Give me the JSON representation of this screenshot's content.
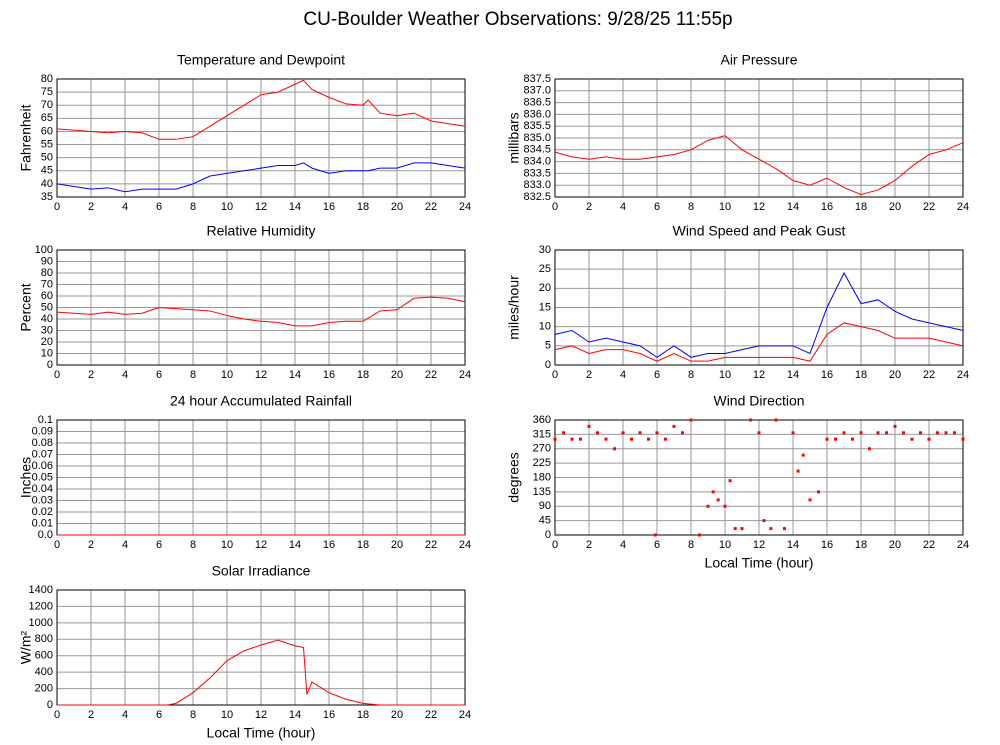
{
  "title": "CU-Boulder Weather Observations: 9/28/25 11:55p",
  "chart_data": [
    {
      "type": "line",
      "title": "Temperature and Dewpoint",
      "ylabel": "Fahrenheit",
      "x": [
        0,
        1,
        2,
        3,
        4,
        5,
        6,
        7,
        8,
        9,
        10,
        11,
        12,
        13,
        14,
        14.5,
        15,
        16,
        17,
        18,
        18.3,
        19,
        20,
        21,
        22,
        23,
        24
      ],
      "series": [
        {
          "name": "Temperature",
          "color": "#ff0000",
          "values": [
            61,
            60.5,
            60,
            59.5,
            60,
            59.5,
            57,
            57,
            58,
            62,
            66,
            70,
            74,
            75,
            78,
            79.5,
            76,
            73,
            70.5,
            70,
            72,
            67,
            66,
            67,
            64,
            63,
            62
          ]
        },
        {
          "name": "Dewpoint",
          "color": "#0000ff",
          "values": [
            40,
            39,
            38,
            38.5,
            37,
            38,
            38,
            38,
            40,
            43,
            44,
            45,
            46,
            47,
            47,
            48,
            46,
            44,
            45,
            45,
            45,
            46,
            46,
            48,
            48,
            47,
            46
          ]
        }
      ],
      "xlim": [
        0,
        24
      ],
      "xticks": [
        0,
        2,
        4,
        6,
        8,
        10,
        12,
        14,
        16,
        18,
        20,
        22,
        24
      ],
      "ylim": [
        35,
        80
      ],
      "yticks": [
        35,
        40,
        45,
        50,
        55,
        60,
        65,
        70,
        75,
        80
      ],
      "grid": true
    },
    {
      "type": "line",
      "title": "Air Pressure",
      "ylabel": "millibars",
      "x": [
        0,
        1,
        2,
        3,
        4,
        5,
        6,
        7,
        8,
        9,
        10,
        11,
        12,
        13,
        14,
        15,
        16,
        17,
        18,
        19,
        20,
        21,
        22,
        23,
        24
      ],
      "series": [
        {
          "name": "Air Pressure",
          "color": "#ff0000",
          "values": [
            834.4,
            834.2,
            834.1,
            834.2,
            834.1,
            834.1,
            834.2,
            834.3,
            834.5,
            834.9,
            835.1,
            834.5,
            834.1,
            833.7,
            833.2,
            833.0,
            833.3,
            832.9,
            832.6,
            832.8,
            833.2,
            833.8,
            834.3,
            834.5,
            834.8
          ]
        }
      ],
      "xlim": [
        0,
        24
      ],
      "xticks": [
        0,
        2,
        4,
        6,
        8,
        10,
        12,
        14,
        16,
        18,
        20,
        22,
        24
      ],
      "ylim": [
        832.5,
        837.5
      ],
      "yticks": [
        832.5,
        {
          "value": 833,
          "label": "833.0"
        },
        833.5,
        {
          "value": 834,
          "label": "834.0"
        },
        834.5,
        {
          "value": 835,
          "label": "835.0"
        },
        835.5,
        {
          "value": 836,
          "label": "836.0"
        },
        836.5,
        {
          "value": 837,
          "label": "837.0"
        },
        837.5
      ],
      "grid": true
    },
    {
      "type": "line",
      "title": "Relative Humidity",
      "ylabel": "Percent",
      "x": [
        0,
        1,
        2,
        3,
        4,
        5,
        6,
        7,
        8,
        9,
        10,
        11,
        12,
        13,
        14,
        15,
        16,
        17,
        18,
        19,
        20,
        21,
        22,
        23,
        24
      ],
      "series": [
        {
          "name": "Relative Humidity",
          "color": "#ff0000",
          "values": [
            46,
            45,
            44,
            46,
            44,
            45,
            50,
            49,
            48,
            47,
            43,
            40,
            38,
            37,
            34,
            34,
            37,
            38,
            38,
            47,
            48,
            58,
            59,
            58,
            55
          ]
        }
      ],
      "xlim": [
        0,
        24
      ],
      "xticks": [
        0,
        2,
        4,
        6,
        8,
        10,
        12,
        14,
        16,
        18,
        20,
        22,
        24
      ],
      "ylim": [
        0,
        100
      ],
      "yticks": [
        0,
        10,
        20,
        30,
        40,
        50,
        60,
        70,
        80,
        90,
        100
      ],
      "grid": true
    },
    {
      "type": "line",
      "title": "Wind Speed and Peak Gust",
      "ylabel": "miles/hour",
      "x": [
        0,
        1,
        2,
        3,
        4,
        5,
        6,
        7,
        8,
        9,
        10,
        11,
        12,
        13,
        14,
        15,
        16,
        17,
        18,
        19,
        20,
        21,
        22,
        23,
        24
      ],
      "series": [
        {
          "name": "Peak Gust",
          "color": "#0000ff",
          "values": [
            8,
            9,
            6,
            7,
            6,
            5,
            2,
            5,
            2,
            3,
            3,
            4,
            5,
            5,
            5,
            3,
            15,
            24,
            16,
            17,
            14,
            12,
            11,
            10,
            9
          ]
        },
        {
          "name": "Wind Speed",
          "color": "#ff0000",
          "values": [
            4,
            5,
            3,
            4,
            4,
            3,
            1,
            3,
            1,
            1,
            2,
            2,
            2,
            2,
            2,
            1,
            8,
            11,
            10,
            9,
            7,
            7,
            7,
            6,
            5
          ]
        }
      ],
      "xlim": [
        0,
        24
      ],
      "xticks": [
        0,
        2,
        4,
        6,
        8,
        10,
        12,
        14,
        16,
        18,
        20,
        22,
        24
      ],
      "ylim": [
        0,
        30
      ],
      "yticks": [
        0,
        5,
        10,
        15,
        20,
        25,
        30
      ],
      "grid": true
    },
    {
      "type": "line",
      "title": "24 hour Accumulated Rainfall",
      "ylabel": "Inches",
      "x": [
        0,
        2,
        4,
        6,
        8,
        10,
        12,
        14,
        16,
        18,
        20,
        22,
        24
      ],
      "series": [
        {
          "name": "Rainfall",
          "color": "#ff0000",
          "values": [
            0,
            0,
            0,
            0,
            0,
            0,
            0,
            0,
            0,
            0,
            0,
            0,
            0
          ]
        }
      ],
      "xlim": [
        0,
        24
      ],
      "xticks": [
        0,
        2,
        4,
        6,
        8,
        10,
        12,
        14,
        16,
        18,
        20,
        22,
        24
      ],
      "ylim": [
        0,
        0.1
      ],
      "yticks": [
        {
          "value": 0,
          "label": "0.0"
        },
        0.01,
        0.02,
        0.03,
        0.04,
        0.05,
        0.06,
        0.07,
        0.08,
        0.09,
        0.1
      ],
      "grid": true
    },
    {
      "type": "scatter",
      "title": "Wind Direction",
      "ylabel": "degrees",
      "xlabel": "Local Time (hour)",
      "x": [
        0,
        0.5,
        1,
        1.5,
        2,
        2.5,
        3,
        3.5,
        4,
        4.5,
        5,
        5.5,
        5.9,
        6,
        6.5,
        7,
        7.5,
        8,
        8.5,
        9,
        9.3,
        9.6,
        10,
        10.3,
        10.6,
        11,
        11.5,
        12,
        12.3,
        12.7,
        13,
        13.5,
        14,
        14.3,
        14.6,
        15,
        15.5,
        16,
        16.5,
        17,
        17.5,
        18,
        18.5,
        19,
        19.5,
        20,
        20.5,
        21,
        21.5,
        22,
        22.5,
        23,
        23.5,
        24
      ],
      "series": [
        {
          "name": "Wind Direction",
          "color": "#ff0000",
          "values": [
            300,
            320,
            300,
            300,
            340,
            320,
            300,
            270,
            320,
            300,
            320,
            300,
            0,
            320,
            300,
            340,
            320,
            360,
            0,
            90,
            135,
            110,
            90,
            170,
            20,
            20,
            360,
            320,
            45,
            20,
            360,
            20,
            320,
            200,
            250,
            110,
            135,
            300,
            300,
            320,
            300,
            320,
            270,
            320,
            320,
            340,
            320,
            300,
            320,
            300,
            320,
            320,
            320,
            300
          ]
        }
      ],
      "xlim": [
        0,
        24
      ],
      "xticks": [
        0,
        2,
        4,
        6,
        8,
        10,
        12,
        14,
        16,
        18,
        20,
        22,
        24
      ],
      "ylim": [
        0,
        360
      ],
      "yticks": [
        0,
        45,
        90,
        135,
        180,
        225,
        270,
        315,
        360
      ],
      "grid": true
    },
    {
      "type": "line",
      "title": "Solar Irradiance",
      "ylabel": "W/m²",
      "xlabel": "Local Time (hour)",
      "x": [
        0,
        2,
        4,
        6,
        6.5,
        7,
        8,
        9,
        10,
        11,
        12,
        13,
        14,
        14.5,
        14.7,
        15,
        16,
        17,
        18,
        19,
        20,
        22,
        24
      ],
      "series": [
        {
          "name": "Solar Irradiance",
          "color": "#ff0000",
          "values": [
            0,
            0,
            0,
            0,
            0,
            20,
            150,
            330,
            540,
            660,
            730,
            790,
            720,
            700,
            130,
            280,
            150,
            70,
            20,
            0,
            0,
            0,
            0
          ]
        }
      ],
      "xlim": [
        0,
        24
      ],
      "xticks": [
        0,
        2,
        4,
        6,
        8,
        10,
        12,
        14,
        16,
        18,
        20,
        22,
        24
      ],
      "ylim": [
        0,
        1400
      ],
      "yticks": [
        0,
        200,
        400,
        600,
        800,
        1000,
        1200,
        1400
      ],
      "grid": true
    }
  ]
}
